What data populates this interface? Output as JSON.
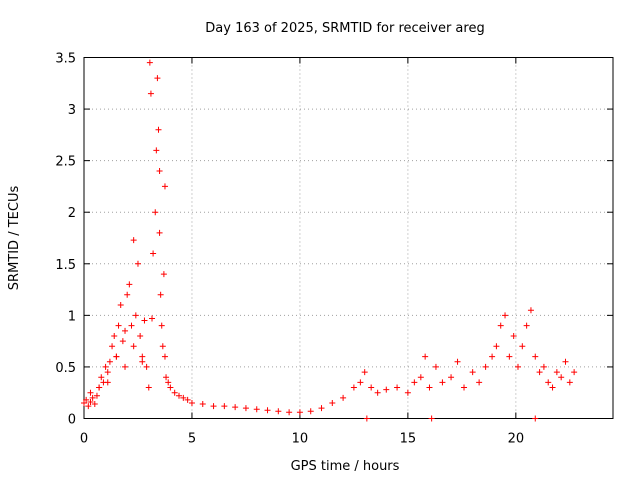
{
  "chart_data": {
    "type": "scatter",
    "title": "Day 163 of 2025, SRMTID for receiver areg",
    "xlabel": "GPS time / hours",
    "ylabel": "SRMTID / TECUs",
    "xlim": [
      0,
      24.5
    ],
    "ylim": [
      0,
      3.5
    ],
    "xticks": [
      0,
      5,
      10,
      15,
      20
    ],
    "yticks": [
      0,
      0.5,
      1,
      1.5,
      2,
      2.5,
      3,
      3.5
    ],
    "xtick_labels": [
      "0",
      "5",
      "10",
      "15",
      "20"
    ],
    "ytick_labels": [
      "0",
      "0.5",
      "1",
      "1.5",
      "2",
      "2.5",
      "3",
      "3.5"
    ],
    "grid": true,
    "marker": "plus",
    "color": "#ff0000",
    "series": [
      {
        "name": "SRMTID",
        "x": [
          0.0,
          0.1,
          0.2,
          0.3,
          0.4,
          0.5,
          0.6,
          0.7,
          0.8,
          0.9,
          1.0,
          1.1,
          1.2,
          1.3,
          1.4,
          1.5,
          1.6,
          1.7,
          1.8,
          1.9,
          2.0,
          2.1,
          2.2,
          2.3,
          2.4,
          2.5,
          2.6,
          2.7,
          2.8,
          2.9,
          3.0,
          3.05,
          3.1,
          3.2,
          3.3,
          3.35,
          3.4,
          3.45,
          3.5,
          3.55,
          3.6,
          3.65,
          3.7,
          3.75,
          3.8,
          3.9,
          4.0,
          4.2,
          4.4,
          4.6,
          4.8,
          5.0,
          5.5,
          6.0,
          6.5,
          7.0,
          7.5,
          8.0,
          8.5,
          9.0,
          9.5,
          10.0,
          10.5,
          11.0,
          11.5,
          12.0,
          12.5,
          12.8,
          13.0,
          13.3,
          13.6,
          14.0,
          14.5,
          15.0,
          15.3,
          15.6,
          15.8,
          16.0,
          16.3,
          16.6,
          17.0,
          17.3,
          17.6,
          18.0,
          18.3,
          18.6,
          18.9,
          19.1,
          19.3,
          19.5,
          19.7,
          19.9,
          20.1,
          20.3,
          20.5,
          20.7,
          20.9,
          21.1,
          21.3,
          21.5,
          21.7,
          21.9,
          22.1,
          22.3,
          22.5,
          22.7,
          0.3,
          0.7,
          1.1,
          1.5,
          1.9,
          2.3,
          2.7,
          3.15,
          3.5,
          3.75,
          13.1,
          20.9,
          16.1
        ],
        "y": [
          0.15,
          0.18,
          0.12,
          0.16,
          0.2,
          0.14,
          0.22,
          0.3,
          0.4,
          0.35,
          0.5,
          0.45,
          0.55,
          0.7,
          0.8,
          0.6,
          0.9,
          1.1,
          0.75,
          0.5,
          1.2,
          1.3,
          0.9,
          0.7,
          1.0,
          1.5,
          0.8,
          0.6,
          0.95,
          0.5,
          0.3,
          3.45,
          3.15,
          1.6,
          2.0,
          2.6,
          3.3,
          2.8,
          1.8,
          1.2,
          0.9,
          0.7,
          1.4,
          0.6,
          0.4,
          0.35,
          0.3,
          0.25,
          0.22,
          0.2,
          0.18,
          0.15,
          0.14,
          0.12,
          0.12,
          0.11,
          0.1,
          0.09,
          0.08,
          0.07,
          0.06,
          0.06,
          0.07,
          0.1,
          0.15,
          0.2,
          0.3,
          0.35,
          0.45,
          0.3,
          0.25,
          0.28,
          0.3,
          0.25,
          0.35,
          0.4,
          0.6,
          0.3,
          0.5,
          0.35,
          0.4,
          0.55,
          0.3,
          0.45,
          0.35,
          0.5,
          0.6,
          0.7,
          0.9,
          1.0,
          0.6,
          0.8,
          0.5,
          0.7,
          0.9,
          1.05,
          0.6,
          0.45,
          0.5,
          0.35,
          0.3,
          0.45,
          0.4,
          0.55,
          0.35,
          0.45,
          0.25,
          0.3,
          0.35,
          0.6,
          0.85,
          1.73,
          0.55,
          0.97,
          2.4,
          2.25,
          0.0,
          0.0,
          0.0
        ]
      }
    ]
  }
}
